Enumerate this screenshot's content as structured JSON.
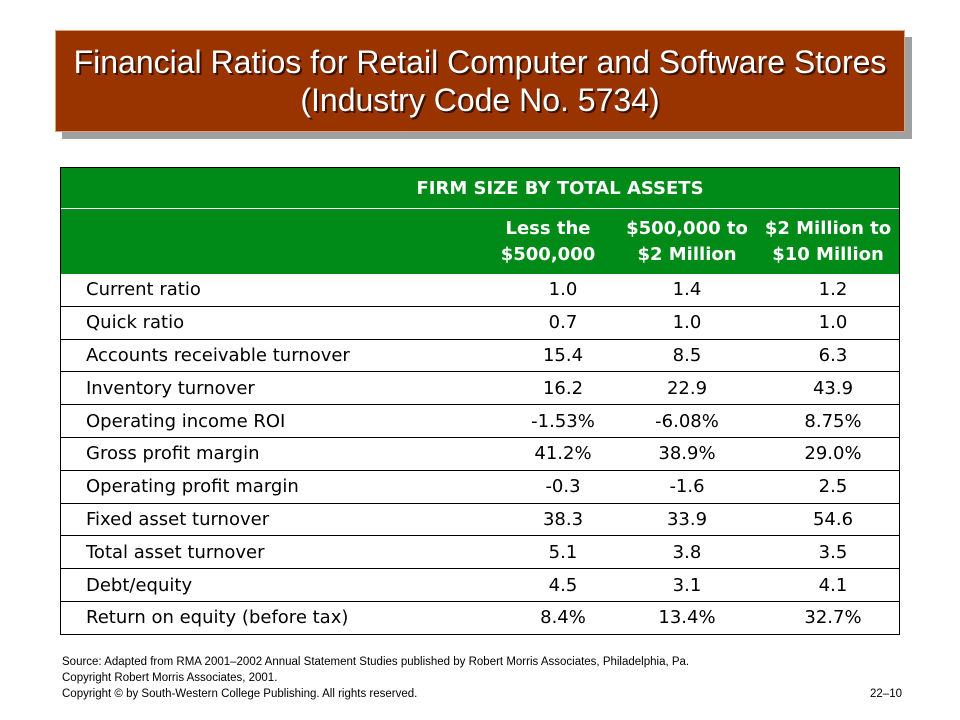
{
  "title": {
    "line1": "Financial Ratios for Retail Computer and Software Stores",
    "line2": "(Industry Code No. 5734)"
  },
  "table": {
    "super_header": "FIRM SIZE BY TOTAL ASSETS",
    "columns": [
      {
        "line1": "Less the",
        "line2": "$500,000"
      },
      {
        "line1": "$500,000 to",
        "line2": "$2 Million"
      },
      {
        "line1": "$2 Million to",
        "line2": "$10 Million"
      }
    ],
    "rows": [
      {
        "label": "Current ratio",
        "values": [
          "1.0",
          "1.4",
          "1.2"
        ]
      },
      {
        "label": "Quick ratio",
        "values": [
          "0.7",
          "1.0",
          "1.0"
        ]
      },
      {
        "label": "Accounts receivable turnover",
        "values": [
          "15.4",
          "8.5",
          "6.3"
        ]
      },
      {
        "label": "Inventory turnover",
        "values": [
          "16.2",
          "22.9",
          "43.9"
        ]
      },
      {
        "label": "Operating income ROI",
        "values": [
          "-1.53%",
          "-6.08%",
          "8.75%"
        ]
      },
      {
        "label": "Gross profit margin",
        "values": [
          "41.2%",
          "38.9%",
          "29.0%"
        ]
      },
      {
        "label": "Operating profit margin",
        "values": [
          "-0.3",
          "-1.6",
          "2.5"
        ]
      },
      {
        "label": "Fixed asset turnover",
        "values": [
          "38.3",
          "33.9",
          "54.6"
        ]
      },
      {
        "label": "Total asset turnover",
        "values": [
          "5.1",
          "3.8",
          "3.5"
        ]
      },
      {
        "label": "Debt/equity",
        "values": [
          "4.5",
          "3.1",
          "4.1"
        ]
      },
      {
        "label": "Return on equity (before tax)",
        "values": [
          "8.4%",
          "13.4%",
          "32.7%"
        ]
      }
    ]
  },
  "footer": {
    "source_line1": "Source: Adapted from RMA 2001–2002 Annual Statement Studies published by Robert Morris Associates, Philadelphia, Pa.",
    "source_line2": "Copyright Robert Morris Associates, 2001.",
    "copyright": "Copyright © by South-Western College Publishing. All rights reserved.",
    "page_number": "22–10"
  },
  "colors": {
    "title_bg": "#993300",
    "header_bg": "#008a17"
  }
}
